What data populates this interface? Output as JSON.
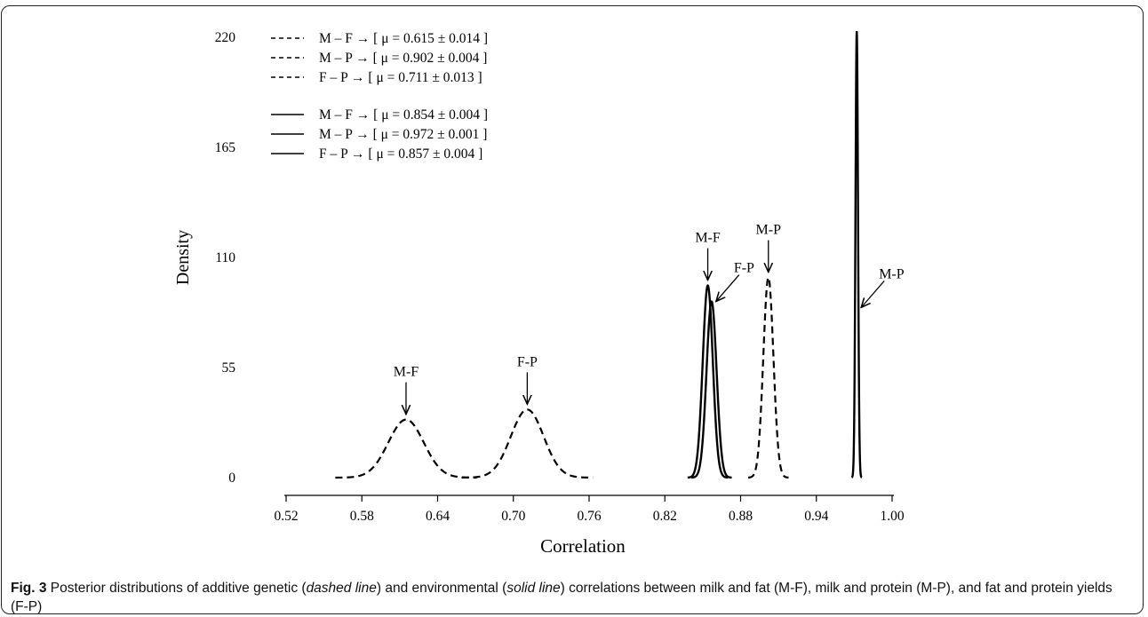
{
  "caption": {
    "label": "Fig. 3",
    "part1": " Posterior distributions of additive genetic (",
    "dashed_term": "dashed line",
    "part2": ") and environmental (",
    "solid_term": "solid line",
    "part3": ") correlations between milk and fat (M-F), milk and protein (M-P), and fat and protein yields (F-P)"
  },
  "chart_data": {
    "type": "line",
    "xlabel": "Correlation",
    "ylabel": "Density",
    "xlim": [
      0.52,
      1.0
    ],
    "ylim": [
      0,
      220
    ],
    "xticks": [
      "0.52",
      "0.58",
      "0.64",
      "0.70",
      "0.76",
      "0.82",
      "0.88",
      "0.94",
      "1.00"
    ],
    "yticks": [
      "0",
      "55",
      "110",
      "165",
      "220"
    ],
    "grid": false,
    "legend_position": "top-left",
    "legend": [
      {
        "style": "dashed",
        "label": "M – F →  [ μ = 0.615 ± 0.014 ]"
      },
      {
        "style": "dashed",
        "label": "M – P →  [ μ = 0.902 ± 0.004 ]"
      },
      {
        "style": "dashed",
        "label": "F – P →  [ μ = 0.711 ± 0.013 ]"
      },
      {
        "style": "solid",
        "label": "M – F →  [ μ = 0.854 ± 0.004 ]"
      },
      {
        "style": "solid",
        "label": "M – P →  [ μ = 0.972 ± 0.001 ]"
      },
      {
        "style": "solid",
        "label": "F – P →  [ μ = 0.857 ± 0.004 ]"
      }
    ],
    "series": [
      {
        "style": "dashed",
        "mean": 0.615,
        "sd": 0.014,
        "peak": 29
      },
      {
        "style": "dashed",
        "mean": 0.902,
        "sd": 0.004,
        "peak": 100
      },
      {
        "style": "dashed",
        "mean": 0.711,
        "sd": 0.013,
        "peak": 34
      },
      {
        "style": "solid",
        "mean": 0.854,
        "sd": 0.004,
        "peak": 96
      },
      {
        "style": "solid",
        "mean": 0.972,
        "sd": 0.001,
        "peak": 223
      },
      {
        "style": "solid",
        "mean": 0.857,
        "sd": 0.004,
        "peak": 88
      }
    ],
    "annotations": [
      {
        "text": "M-F",
        "x": 0.615,
        "y": 29,
        "arrow": "down"
      },
      {
        "text": "F-P",
        "x": 0.711,
        "y": 34,
        "arrow": "down"
      },
      {
        "text": "M-F",
        "x": 0.854,
        "y": 96,
        "arrow": "down"
      },
      {
        "text": "F-P",
        "x": 0.857,
        "y": 88,
        "arrow": "diagonal"
      },
      {
        "text": "M-P",
        "x": 0.902,
        "y": 100,
        "arrow": "down"
      },
      {
        "text": "M-P",
        "x": 0.972,
        "y": 85,
        "arrow": "diagonal"
      }
    ]
  }
}
